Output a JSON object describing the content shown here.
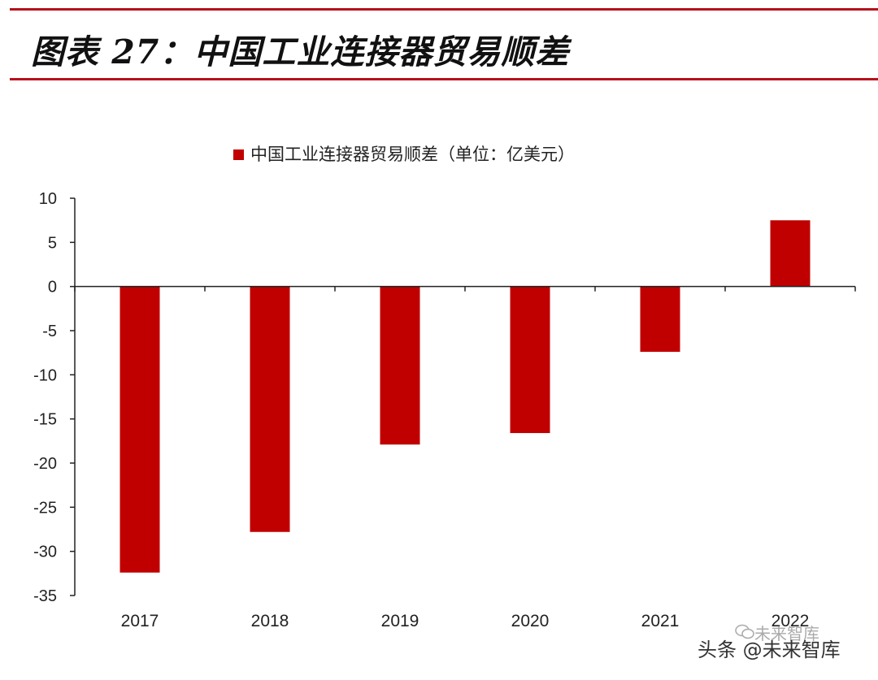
{
  "figure": {
    "title": "图表 27：中国工业连接器贸易顺差",
    "accent_color": "#b5121b",
    "bar_color": "#c00000"
  },
  "watermark": {
    "main": "头条 @未来智库",
    "sub": "未来智库"
  },
  "chart_data": {
    "type": "bar",
    "title": "",
    "legend": "中国工业连接器贸易顺差（单位：亿美元）",
    "legend_position": "top-center",
    "categories": [
      "2017",
      "2018",
      "2019",
      "2020",
      "2021",
      "2022"
    ],
    "values": [
      -32.4,
      -27.8,
      -17.9,
      -16.6,
      -7.4,
      7.5
    ],
    "ylim": [
      -35,
      10
    ],
    "yticks": [
      10,
      5,
      0,
      -5,
      -10,
      -15,
      -20,
      -25,
      -30,
      -35
    ],
    "xlabel": "",
    "ylabel": "",
    "grid": false
  }
}
